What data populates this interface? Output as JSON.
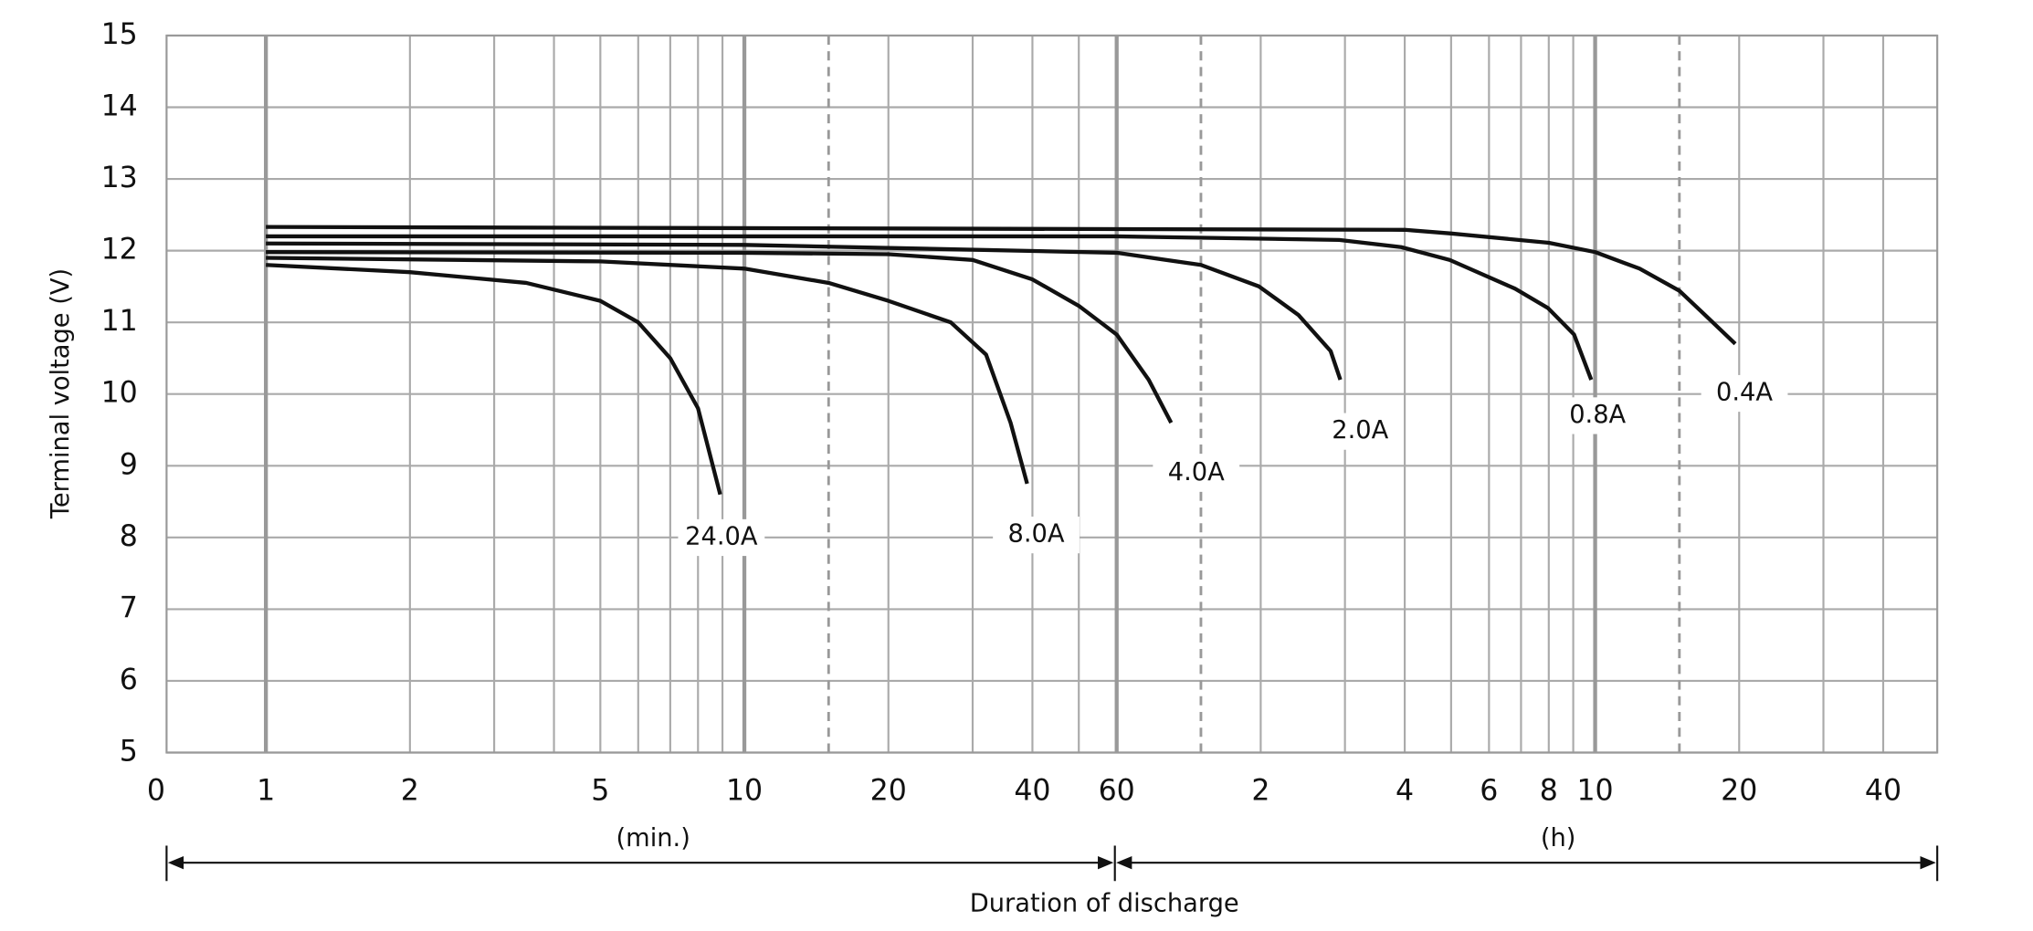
{
  "chart_data": {
    "type": "line",
    "ylabel": "Terminal voltage (V)",
    "xlabel": "Duration of discharge",
    "annotations": [
      "(min.)",
      "(h)"
    ],
    "x_scale": "log",
    "xlim": [
      0.62,
      3113
    ],
    "ylim": [
      5,
      15
    ],
    "xticks": [
      {
        "value": 0.62,
        "label": "0"
      },
      1,
      2,
      5,
      10,
      20,
      40,
      60,
      {
        "value": 120,
        "label": "2"
      },
      {
        "value": 240,
        "label": "4"
      },
      {
        "value": 360,
        "label": "6"
      },
      {
        "value": 480,
        "label": "8"
      },
      {
        "value": 600,
        "label": "10"
      },
      {
        "value": 1200,
        "label": "20"
      },
      {
        "value": 2400,
        "label": "40"
      }
    ],
    "yticks": [
      5,
      6,
      7,
      8,
      9,
      10,
      11,
      12,
      13,
      14,
      15
    ],
    "x_major_grid": [
      1,
      10,
      60,
      600
    ],
    "x_minor_grid": [
      2,
      3,
      4,
      5,
      6,
      7,
      8,
      9,
      20,
      30,
      40,
      50,
      120,
      180,
      240,
      300,
      360,
      420,
      480,
      540,
      1200,
      1800,
      2400
    ],
    "x_dashed_grid": [
      15,
      90,
      900
    ],
    "grid": true,
    "series": [
      {
        "name": "24.0A",
        "color": "#111111",
        "x": [
          1,
          2,
          3.5,
          5,
          6,
          7,
          8,
          8.9
        ],
        "values": [
          11.8,
          11.7,
          11.55,
          11.3,
          11.0,
          10.5,
          9.8,
          8.6
        ]
      },
      {
        "name": "8.0A",
        "color": "#111111",
        "x": [
          1,
          5,
          10,
          15,
          20,
          27,
          32,
          36,
          39
        ],
        "values": [
          11.9,
          11.85,
          11.75,
          11.55,
          11.3,
          11.0,
          10.55,
          9.6,
          8.75
        ]
      },
      {
        "name": "4.0A",
        "color": "#111111",
        "x": [
          1,
          10,
          20,
          30,
          40,
          50,
          60,
          70,
          78
        ],
        "values": [
          11.98,
          11.97,
          11.95,
          11.87,
          11.6,
          11.23,
          10.83,
          10.2,
          9.6
        ]
      },
      {
        "name": "2.0A",
        "color": "#111111",
        "x": [
          1,
          10,
          60,
          90,
          119,
          144,
          168,
          176
        ],
        "values": [
          12.1,
          12.08,
          11.97,
          11.8,
          11.5,
          11.1,
          10.6,
          10.2
        ]
      },
      {
        "name": "0.8A",
        "color": "#111111",
        "x": [
          1,
          60,
          175,
          236,
          298,
          408,
          478,
          542,
          589
        ],
        "values": [
          12.2,
          12.2,
          12.15,
          12.05,
          11.87,
          11.47,
          11.2,
          10.83,
          10.2
        ]
      },
      {
        "name": "0.4A",
        "color": "#111111",
        "x": [
          1,
          240,
          300,
          480,
          600,
          743,
          900,
          1019,
          1178
        ],
        "values": [
          12.33,
          12.29,
          12.24,
          12.11,
          11.98,
          11.75,
          11.44,
          11.1,
          10.7
        ]
      }
    ]
  }
}
